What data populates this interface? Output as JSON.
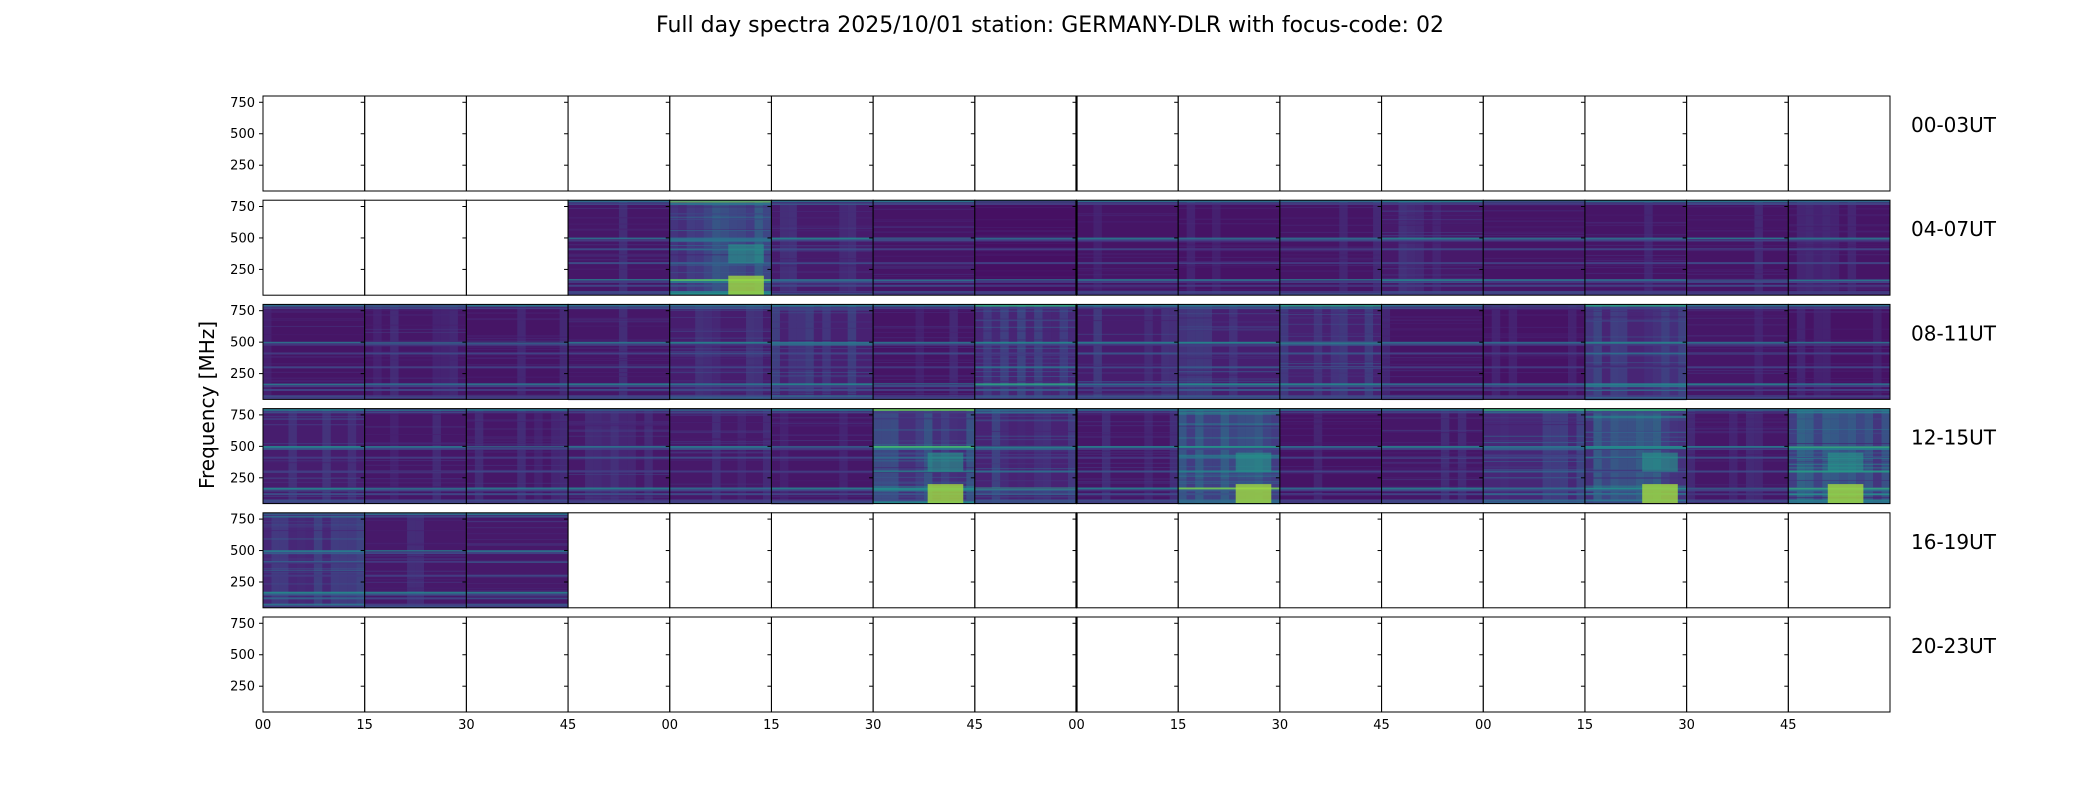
{
  "chart_data": {
    "type": "heatmap",
    "title": "Full day spectra 2025/10/01 station: GERMANY-DLR with focus-code: 02",
    "ylabel": "Frequency [MHz]",
    "xlabel": "",
    "ylim": [
      45,
      800
    ],
    "yticks": [
      250,
      500,
      750
    ],
    "ytick_labels": [
      "250",
      "500",
      "750"
    ],
    "xtick_labels": [
      "00",
      "15",
      "30",
      "45",
      "00",
      "15",
      "30",
      "45",
      "00",
      "15",
      "30",
      "45",
      "00",
      "15",
      "30",
      "45"
    ],
    "panel_minutes": 15,
    "colormap": "viridis",
    "rows": [
      {
        "label": "00-03UT",
        "panels": [
          0,
          0,
          0,
          0,
          0,
          0,
          0,
          0,
          0,
          0,
          0,
          0,
          0,
          0,
          0,
          0
        ],
        "activity": [
          0,
          0,
          0,
          0,
          0,
          0,
          0,
          0,
          0,
          0,
          0,
          0,
          0,
          0,
          0,
          0
        ]
      },
      {
        "label": "04-07UT",
        "panels": [
          0,
          0,
          0,
          1,
          1,
          1,
          1,
          1,
          1,
          1,
          1,
          1,
          1,
          1,
          1,
          1
        ],
        "activity": [
          0,
          0,
          0,
          0.2,
          0.85,
          0.3,
          0.15,
          0.05,
          0.15,
          0.1,
          0.15,
          0.25,
          0.15,
          0.15,
          0.15,
          0.15
        ]
      },
      {
        "label": "08-11UT",
        "panels": [
          1,
          1,
          1,
          1,
          1,
          1,
          1,
          1,
          1,
          1,
          1,
          1,
          1,
          1,
          1,
          1
        ],
        "activity": [
          0.15,
          0.2,
          0.15,
          0.2,
          0.35,
          0.45,
          0.15,
          0.55,
          0.35,
          0.4,
          0.45,
          0.15,
          0.1,
          0.55,
          0.2,
          0.1
        ]
      },
      {
        "label": "12-15UT",
        "panels": [
          1,
          1,
          1,
          1,
          1,
          1,
          1,
          1,
          1,
          1,
          1,
          1,
          1,
          1,
          1,
          1
        ],
        "activity": [
          0.35,
          0.2,
          0.2,
          0.25,
          0.25,
          0.2,
          0.8,
          0.5,
          0.2,
          0.85,
          0.1,
          0.2,
          0.6,
          0.9,
          0.2,
          0.95
        ]
      },
      {
        "label": "16-19UT",
        "panels": [
          1,
          1,
          1,
          0,
          0,
          0,
          0,
          0,
          0,
          0,
          0,
          0,
          0,
          0,
          0,
          0
        ],
        "activity": [
          0.6,
          0.25,
          0.25,
          0,
          0,
          0,
          0,
          0,
          0,
          0,
          0,
          0,
          0,
          0,
          0,
          0
        ]
      },
      {
        "label": "20-23UT",
        "panels": [
          0,
          0,
          0,
          0,
          0,
          0,
          0,
          0,
          0,
          0,
          0,
          0,
          0,
          0,
          0,
          0
        ],
        "activity": [
          0,
          0,
          0,
          0,
          0,
          0,
          0,
          0,
          0,
          0,
          0,
          0,
          0,
          0,
          0,
          0
        ]
      }
    ],
    "colors": {
      "background": "#440154",
      "low": "#46327e",
      "mid": "#21918c",
      "high": "#5ec962",
      "peak": "#fde725",
      "axis": "#000000"
    }
  }
}
